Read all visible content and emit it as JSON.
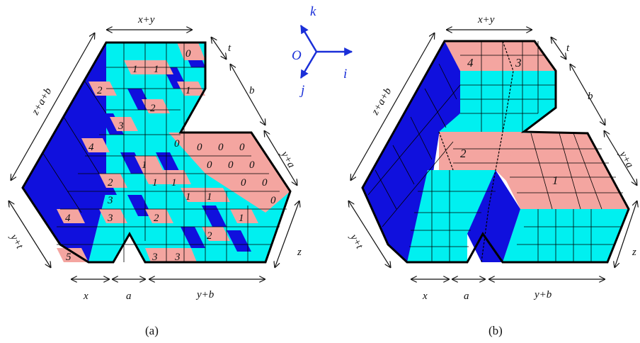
{
  "colors": {
    "top": "#f4a5a0",
    "front": "#00f0f0",
    "side": "#1010dd",
    "edge": "#000000",
    "axis": "#1a2fd8"
  },
  "axes": {
    "origin": "O",
    "i": "i",
    "j": "j",
    "k": "k"
  },
  "panel_a": {
    "caption": "(a)",
    "labels": {
      "top": "x+y",
      "t": "t",
      "b": "b",
      "ya": "y+a",
      "z": "z",
      "yb": "y+b",
      "a": "a",
      "x": "x",
      "yt": "y+t",
      "zab": "z+a+b"
    },
    "numbers": [
      "0",
      "1",
      "1",
      "1",
      "2",
      "2",
      "3",
      "4",
      "0",
      "0",
      "0",
      "0",
      "0",
      "0",
      "0",
      "1",
      "0",
      "0",
      "1",
      "1",
      "1",
      "1",
      "0",
      "2",
      "2",
      "1",
      "3",
      "4",
      "3",
      "2",
      "5",
      "3",
      "3"
    ]
  },
  "panel_b": {
    "caption": "(b)",
    "labels": {
      "top": "x+y",
      "t": "t",
      "b": "b",
      "ya": "y+a",
      "z": "z",
      "yb": "y+b",
      "a": "a",
      "x": "x",
      "yt": "y+t",
      "zab": "z+a+b"
    },
    "parts": [
      "4",
      "3",
      "2",
      "1"
    ]
  }
}
